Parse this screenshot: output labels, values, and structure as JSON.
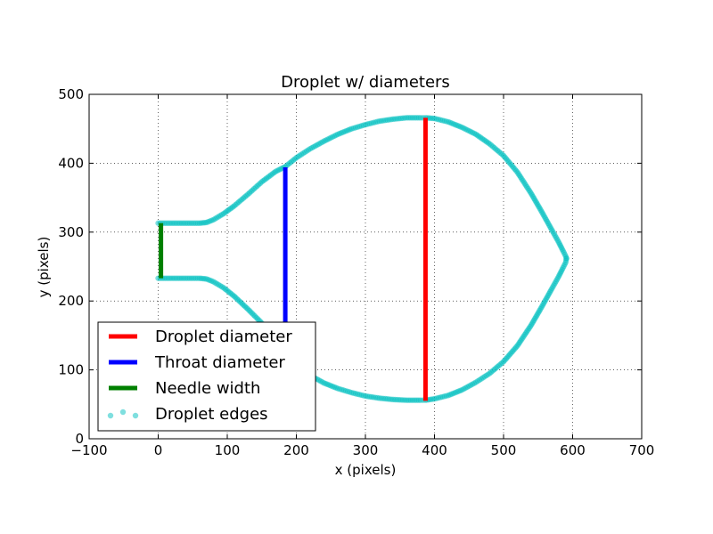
{
  "chart_data": {
    "type": "scatter",
    "title": "Droplet w/ diameters",
    "xlabel": "x (pixels)",
    "ylabel": "y (pixels)",
    "xlim": [
      -100,
      700
    ],
    "ylim": [
      0,
      500
    ],
    "xticks": [
      -100,
      0,
      100,
      200,
      300,
      400,
      500,
      600,
      700
    ],
    "yticks": [
      0,
      100,
      200,
      300,
      400,
      500
    ],
    "xtick_labels": [
      "−100",
      "0",
      "100",
      "200",
      "300",
      "400",
      "500",
      "600",
      "700"
    ],
    "ytick_labels": [
      "0",
      "100",
      "200",
      "300",
      "400",
      "500"
    ],
    "grid": true,
    "legend_position": "lower-left",
    "series": [
      {
        "name": "Droplet diameter",
        "kind": "line",
        "color": "#ff0000",
        "x": [
          387,
          387
        ],
        "y": [
          55,
          466
        ]
      },
      {
        "name": "Throat diameter",
        "kind": "line",
        "color": "#0000ff",
        "x": [
          184,
          184
        ],
        "y": [
          140,
          394
        ]
      },
      {
        "name": "Needle width",
        "kind": "line",
        "color": "#008000",
        "x": [
          4,
          4
        ],
        "y": [
          233,
          313
        ]
      },
      {
        "name": "Droplet edges",
        "kind": "scatter",
        "color": "#00bfbf",
        "upper_edge": {
          "x": [
            0,
            20,
            40,
            60,
            70,
            80,
            95,
            110,
            130,
            150,
            170,
            184,
            200,
            220,
            240,
            260,
            280,
            300,
            320,
            340,
            360,
            380,
            387,
            400,
            420,
            440,
            460,
            480,
            500,
            520,
            540,
            555,
            570,
            580,
            586,
            590,
            591
          ],
          "y": [
            313,
            313,
            313,
            313,
            314,
            318,
            327,
            338,
            355,
            373,
            388,
            395,
            408,
            421,
            432,
            442,
            450,
            456,
            461,
            464,
            466,
            466,
            466,
            465,
            460,
            452,
            442,
            428,
            411,
            387,
            356,
            330,
            303,
            285,
            273,
            265,
            262
          ]
        },
        "lower_edge": {
          "x": [
            0,
            20,
            40,
            60,
            70,
            80,
            95,
            110,
            130,
            150,
            165,
            180,
            200,
            220,
            240,
            260,
            280,
            300,
            320,
            340,
            360,
            380,
            387,
            400,
            420,
            440,
            460,
            480,
            500,
            520,
            540,
            555,
            570,
            580,
            586,
            590,
            591
          ],
          "y": [
            233,
            233,
            233,
            233,
            232,
            228,
            219,
            207,
            188,
            168,
            148,
            128,
            107,
            92,
            81,
            73,
            67,
            62,
            59,
            57,
            56,
            56,
            56,
            58,
            63,
            71,
            82,
            95,
            112,
            135,
            165,
            191,
            218,
            236,
            248,
            256,
            262
          ]
        }
      }
    ]
  }
}
